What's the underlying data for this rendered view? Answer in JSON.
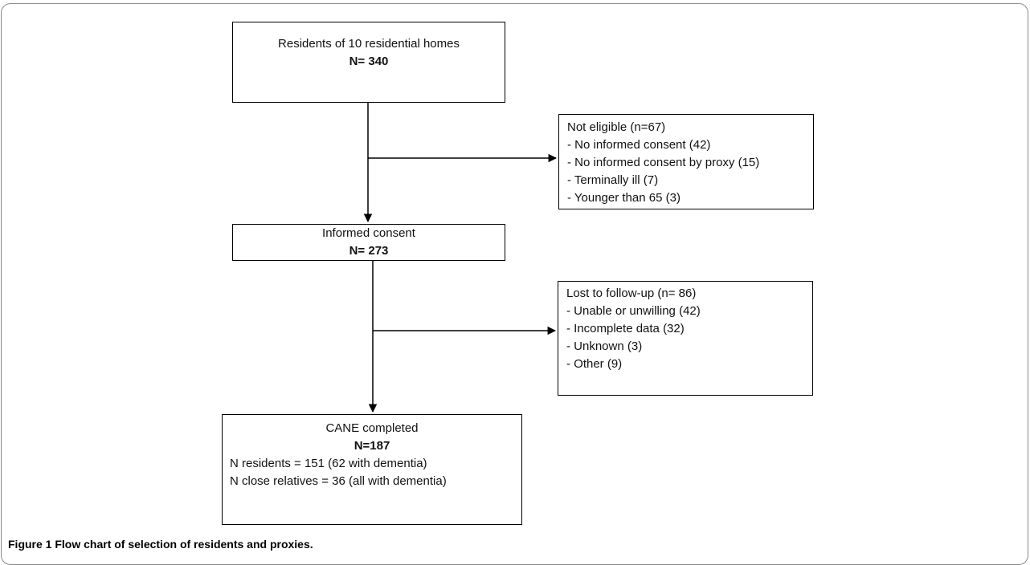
{
  "flowchart": {
    "residents": {
      "title": "Residents of 10 residential homes",
      "n": "N= 340"
    },
    "not_eligible": {
      "title": "Not eligible (n=67)",
      "items": [
        "- No informed consent (42)",
        "- No informed consent by proxy (15)",
        "- Terminally ill (7)",
        "- Younger than 65 (3)"
      ]
    },
    "informed_consent": {
      "title": "Informed consent",
      "n": "N= 273"
    },
    "lost_followup": {
      "title": "Lost to follow-up (n= 86)",
      "items": [
        "- Unable or unwilling (42)",
        "- Incomplete data (32)",
        "- Unknown (3)",
        "- Other (9)"
      ]
    },
    "cane": {
      "title": "CANE completed",
      "n": "N=187",
      "lines": [
        "N residents = 151 (62 with dementia)",
        "N close relatives = 36 (all with dementia)"
      ]
    }
  },
  "caption": {
    "label": "Figure 1",
    "text": "Flow chart of selection of residents and proxies."
  }
}
